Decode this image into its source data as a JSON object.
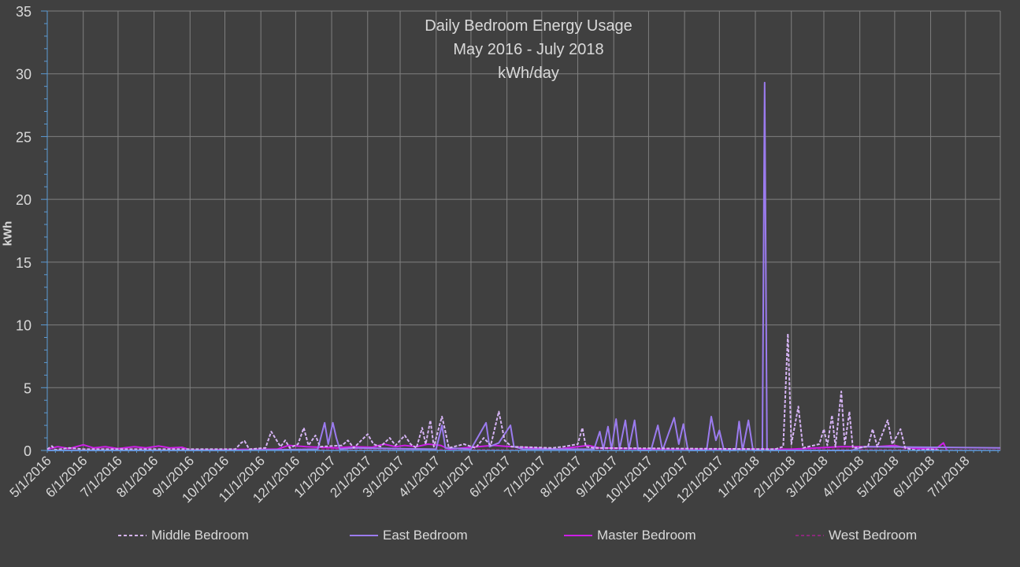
{
  "chart_data": {
    "type": "line",
    "title": "Daily Bedroom Energy Usage",
    "subtitle": "May 2016 - July 2018",
    "unit_line": "kWh/day",
    "xlabel": "",
    "ylabel": "kWh",
    "ylim": [
      0,
      35
    ],
    "yticks": [
      0,
      5,
      10,
      15,
      20,
      25,
      30,
      35
    ],
    "xlim": [
      "2016-05-01",
      "2018-07-31"
    ],
    "xticks": [
      "5/1/2016",
      "6/1/2016",
      "7/1/2016",
      "8/1/2016",
      "9/1/2016",
      "10/1/2016",
      "11/1/2016",
      "12/1/2016",
      "1/1/2017",
      "2/1/2017",
      "3/1/2017",
      "4/1/2017",
      "5/1/2017",
      "6/1/2017",
      "7/1/2017",
      "8/1/2017",
      "9/1/2017",
      "10/1/2017",
      "11/1/2017",
      "12/1/2017",
      "1/1/2018",
      "2/1/2018",
      "3/1/2018",
      "4/1/2018",
      "5/1/2018",
      "6/1/2018",
      "7/1/2018"
    ],
    "grid": true,
    "legend_position": "bottom",
    "series": [
      {
        "name": "Middle Bedroom",
        "color": "#d6b4f5",
        "dash": "dashed",
        "points": [
          [
            "2016-05-01",
            0.1
          ],
          [
            "2016-05-05",
            0.35
          ],
          [
            "2016-05-08",
            0.05
          ],
          [
            "2016-05-20",
            0.2
          ],
          [
            "2016-06-01",
            0.1
          ],
          [
            "2016-10-10",
            0.1
          ],
          [
            "2016-10-15",
            0.6
          ],
          [
            "2016-10-18",
            0.75
          ],
          [
            "2016-10-22",
            0.1
          ],
          [
            "2016-11-05",
            0.2
          ],
          [
            "2016-11-10",
            1.5
          ],
          [
            "2016-11-14",
            0.9
          ],
          [
            "2016-11-18",
            0.3
          ],
          [
            "2016-11-22",
            0.8
          ],
          [
            "2016-11-26",
            0.2
          ],
          [
            "2016-12-03",
            0.5
          ],
          [
            "2016-12-08",
            1.8
          ],
          [
            "2016-12-12",
            0.4
          ],
          [
            "2016-12-18",
            1.2
          ],
          [
            "2016-12-22",
            0.3
          ],
          [
            "2017-01-10",
            0.4
          ],
          [
            "2017-01-15",
            0.8
          ],
          [
            "2017-01-20",
            0.2
          ],
          [
            "2017-02-01",
            1.3
          ],
          [
            "2017-02-06",
            0.5
          ],
          [
            "2017-02-12",
            0.3
          ],
          [
            "2017-02-20",
            1.0
          ],
          [
            "2017-02-25",
            0.4
          ],
          [
            "2017-03-05",
            1.2
          ],
          [
            "2017-03-10",
            0.5
          ],
          [
            "2017-03-15",
            0.2
          ],
          [
            "2017-03-20",
            1.8
          ],
          [
            "2017-03-23",
            0.5
          ],
          [
            "2017-03-27",
            2.4
          ],
          [
            "2017-03-30",
            0.3
          ],
          [
            "2017-04-03",
            1.7
          ],
          [
            "2017-04-06",
            2.7
          ],
          [
            "2017-04-09",
            1.5
          ],
          [
            "2017-04-12",
            0.2
          ],
          [
            "2017-04-25",
            0.5
          ],
          [
            "2017-05-05",
            0.2
          ],
          [
            "2017-05-12",
            1.0
          ],
          [
            "2017-05-18",
            0.4
          ],
          [
            "2017-05-25",
            3.1
          ],
          [
            "2017-05-30",
            0.8
          ],
          [
            "2017-06-05",
            0.3
          ],
          [
            "2017-07-10",
            0.2
          ],
          [
            "2017-07-20",
            0.3
          ],
          [
            "2017-08-01",
            0.5
          ],
          [
            "2017-08-05",
            1.8
          ],
          [
            "2017-08-08",
            0.3
          ],
          [
            "2017-08-15",
            0.2
          ],
          [
            "2018-01-18",
            0.1
          ],
          [
            "2018-01-25",
            0.3
          ],
          [
            "2018-01-29",
            9.3
          ],
          [
            "2018-02-01",
            0.5
          ],
          [
            "2018-02-07",
            3.5
          ],
          [
            "2018-02-11",
            0.2
          ],
          [
            "2018-02-25",
            0.5
          ],
          [
            "2018-03-01",
            1.7
          ],
          [
            "2018-03-04",
            0.4
          ],
          [
            "2018-03-08",
            2.8
          ],
          [
            "2018-03-11",
            0.3
          ],
          [
            "2018-03-16",
            4.7
          ],
          [
            "2018-03-19",
            0.4
          ],
          [
            "2018-03-23",
            3.1
          ],
          [
            "2018-03-26",
            0.2
          ],
          [
            "2018-04-08",
            0.3
          ],
          [
            "2018-04-12",
            1.7
          ],
          [
            "2018-04-16",
            0.3
          ],
          [
            "2018-04-25",
            2.4
          ],
          [
            "2018-04-29",
            0.5
          ],
          [
            "2018-05-06",
            1.7
          ],
          [
            "2018-05-10",
            0.2
          ],
          [
            "2018-05-20",
            0.0
          ],
          [
            "2018-06-01",
            0.1
          ],
          [
            "2018-06-10",
            0.0
          ]
        ]
      },
      {
        "name": "East Bedroom",
        "color": "#9b7bef",
        "dash": "solid",
        "points": [
          [
            "2016-05-01",
            0.0
          ],
          [
            "2016-10-01",
            0.0
          ],
          [
            "2016-12-20",
            0.1
          ],
          [
            "2016-12-26",
            2.2
          ],
          [
            "2016-12-29",
            0.5
          ],
          [
            "2017-01-02",
            2.2
          ],
          [
            "2017-01-05",
            1.0
          ],
          [
            "2017-01-08",
            0.1
          ],
          [
            "2017-01-20",
            0.2
          ],
          [
            "2017-04-01",
            0.1
          ],
          [
            "2017-04-06",
            2.0
          ],
          [
            "2017-04-09",
            0.2
          ],
          [
            "2017-05-01",
            0.1
          ],
          [
            "2017-05-14",
            2.2
          ],
          [
            "2017-05-17",
            0.3
          ],
          [
            "2017-05-25",
            0.6
          ],
          [
            "2017-06-04",
            2.0
          ],
          [
            "2017-06-07",
            0.3
          ],
          [
            "2017-06-15",
            0.1
          ],
          [
            "2017-08-15",
            0.1
          ],
          [
            "2017-08-20",
            1.5
          ],
          [
            "2017-08-23",
            0.1
          ],
          [
            "2017-08-27",
            1.9
          ],
          [
            "2017-08-30",
            0.1
          ],
          [
            "2017-09-03",
            2.5
          ],
          [
            "2017-09-06",
            0.1
          ],
          [
            "2017-09-11",
            2.4
          ],
          [
            "2017-09-14",
            0.1
          ],
          [
            "2017-09-19",
            2.4
          ],
          [
            "2017-09-22",
            0.0
          ],
          [
            "2017-10-03",
            0.0
          ],
          [
            "2017-10-09",
            2.0
          ],
          [
            "2017-10-13",
            0.0
          ],
          [
            "2017-10-23",
            2.6
          ],
          [
            "2017-10-27",
            0.5
          ],
          [
            "2017-10-31",
            2.1
          ],
          [
            "2017-11-04",
            0.0
          ],
          [
            "2017-11-20",
            0.0
          ],
          [
            "2017-11-24",
            2.7
          ],
          [
            "2017-11-28",
            0.8
          ],
          [
            "2017-12-01",
            1.6
          ],
          [
            "2017-12-05",
            0.0
          ],
          [
            "2017-12-15",
            0.0
          ],
          [
            "2017-12-18",
            2.3
          ],
          [
            "2017-12-21",
            0.0
          ],
          [
            "2017-12-26",
            2.4
          ],
          [
            "2017-12-30",
            0.0
          ],
          [
            "2018-01-07",
            0.0
          ],
          [
            "2018-01-09",
            29.3
          ],
          [
            "2018-01-11",
            0.0
          ],
          [
            "2018-03-25",
            0.0
          ],
          [
            "2018-04-05",
            0.3
          ],
          [
            "2018-07-31",
            0.2
          ]
        ]
      },
      {
        "name": "Master Bedroom",
        "color": "#cc1ee6",
        "dash": "solid",
        "points": [
          [
            "2016-05-01",
            0.1
          ],
          [
            "2016-05-10",
            0.3
          ],
          [
            "2016-05-20",
            0.15
          ],
          [
            "2016-06-01",
            0.45
          ],
          [
            "2016-06-10",
            0.2
          ],
          [
            "2016-06-20",
            0.3
          ],
          [
            "2016-07-01",
            0.15
          ],
          [
            "2016-07-15",
            0.3
          ],
          [
            "2016-07-25",
            0.2
          ],
          [
            "2016-08-05",
            0.35
          ],
          [
            "2016-08-15",
            0.2
          ],
          [
            "2016-08-25",
            0.25
          ],
          [
            "2016-09-01",
            0.05
          ],
          [
            "2016-11-15",
            0.1
          ],
          [
            "2016-11-25",
            0.4
          ],
          [
            "2016-12-10",
            0.3
          ],
          [
            "2017-01-05",
            0.2
          ],
          [
            "2017-01-20",
            0.3
          ],
          [
            "2017-02-05",
            0.25
          ],
          [
            "2017-02-15",
            0.5
          ],
          [
            "2017-02-25",
            0.3
          ],
          [
            "2017-03-05",
            0.4
          ],
          [
            "2017-03-15",
            0.3
          ],
          [
            "2017-03-25",
            0.5
          ],
          [
            "2017-04-05",
            0.4
          ],
          [
            "2017-04-12",
            0.1
          ],
          [
            "2017-05-20",
            0.4
          ],
          [
            "2017-06-05",
            0.3
          ],
          [
            "2017-07-15",
            0.1
          ],
          [
            "2017-08-01",
            0.3
          ],
          [
            "2017-08-10",
            0.4
          ],
          [
            "2017-08-20",
            0.2
          ],
          [
            "2017-10-05",
            0.1
          ],
          [
            "2018-02-01",
            0.1
          ],
          [
            "2018-03-15",
            0.3
          ],
          [
            "2018-04-15",
            0.3
          ],
          [
            "2018-05-01",
            0.4
          ],
          [
            "2018-05-10",
            0.2
          ],
          [
            "2018-06-05",
            0.1
          ],
          [
            "2018-06-12",
            0.6
          ],
          [
            "2018-06-15",
            0.0
          ]
        ]
      },
      {
        "name": "West Bedroom",
        "color": "#8a2a7a",
        "dash": "dashed",
        "points": [
          [
            "2016-05-01",
            0.05
          ],
          [
            "2016-07-01",
            0.1
          ],
          [
            "2016-09-01",
            0.05
          ],
          [
            "2016-12-01",
            0.1
          ],
          [
            "2017-03-01",
            0.1
          ],
          [
            "2017-06-01",
            0.05
          ],
          [
            "2017-09-01",
            0.1
          ],
          [
            "2017-12-01",
            0.05
          ],
          [
            "2018-03-01",
            0.1
          ],
          [
            "2018-06-01",
            0.05
          ],
          [
            "2018-07-31",
            0.05
          ]
        ]
      }
    ]
  }
}
